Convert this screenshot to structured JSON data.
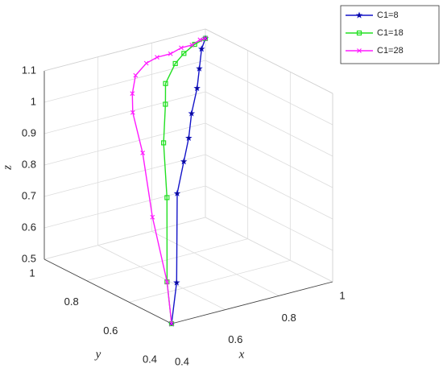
{
  "chart_data": {
    "type": "line3d",
    "xlabel": "x",
    "ylabel": "y",
    "zlabel": "z",
    "xlim": [
      0.4,
      1
    ],
    "ylim": [
      0.4,
      1
    ],
    "zlim": [
      0.5,
      1.1
    ],
    "xticks": [
      0.4,
      0.6,
      0.8,
      1
    ],
    "yticks": [
      0.4,
      0.6,
      0.8,
      1
    ],
    "zticks": [
      0.5,
      0.6,
      0.7,
      0.8,
      0.9,
      1,
      1.1
    ],
    "grid": true,
    "legend": "upper right",
    "series": [
      {
        "name": "C1=8",
        "color": "#1414c8",
        "marker": "star",
        "x": [
          0.4,
          0.49,
          0.65,
          0.73,
          0.78,
          0.83,
          0.89,
          0.93,
          0.97,
          1
        ],
        "y": [
          0.4,
          0.49,
          0.69,
          0.76,
          0.8,
          0.85,
          0.9,
          0.94,
          0.98,
          1
        ],
        "z": [
          0.5,
          0.58,
          0.76,
          0.82,
          0.87,
          0.92,
          0.97,
          1.01,
          1.05,
          1.07
        ]
      },
      {
        "name": "C1=18",
        "color": "#22e022",
        "marker": "square",
        "x": [
          0.4,
          0.47,
          0.62,
          0.71,
          0.78,
          0.82,
          0.88,
          0.92,
          0.96,
          1
        ],
        "y": [
          0.4,
          0.51,
          0.7,
          0.83,
          0.91,
          0.96,
          0.99,
          1,
          1,
          1
        ],
        "z": [
          0.5,
          0.58,
          0.75,
          0.86,
          0.94,
          0.98,
          1.02,
          1.04,
          1.06,
          1.07
        ]
      },
      {
        "name": "C1=28",
        "color": "#ff1aff",
        "marker": "x",
        "x": [
          0.4,
          0.47,
          0.55,
          0.64,
          0.69,
          0.72,
          0.74,
          0.78,
          0.82,
          0.87,
          0.91,
          0.95,
          0.98,
          1
        ],
        "y": [
          0.4,
          0.51,
          0.68,
          0.84,
          0.95,
          0.99,
          1,
          1,
          1,
          1,
          1,
          1,
          1,
          1
        ],
        "z": [
          0.5,
          0.58,
          0.71,
          0.84,
          0.92,
          0.96,
          1.01,
          1.04,
          1.05,
          1.05,
          1.06,
          1.06,
          1.07,
          1.07
        ]
      }
    ]
  }
}
